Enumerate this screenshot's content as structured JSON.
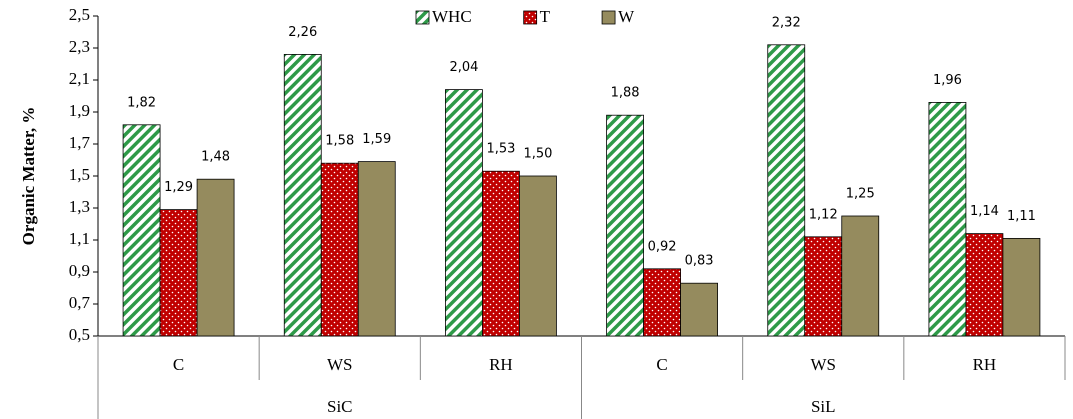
{
  "chart_data": {
    "type": "bar",
    "y_label": "Organic Matter, %",
    "category_groups": [
      {
        "name": "SiC",
        "categories": [
          "C",
          "WS",
          "RH"
        ]
      },
      {
        "name": "SiL",
        "categories": [
          "C",
          "WS",
          "RH"
        ]
      }
    ],
    "series": [
      {
        "name": "WHC",
        "color": "#2e9a48",
        "pattern": "hatch",
        "values": [
          1.82,
          2.26,
          2.04,
          1.88,
          2.32,
          1.96
        ],
        "value_labels": [
          "1,82",
          "2,26",
          "2,04",
          "1,88",
          "2,32",
          "1,96"
        ]
      },
      {
        "name": "T",
        "color": "#c00000",
        "pattern": "dots",
        "values": [
          1.29,
          1.58,
          1.53,
          0.92,
          1.12,
          1.14
        ],
        "value_labels": [
          "1,29",
          "1,58",
          "1,53",
          "0,92",
          "1,12",
          "1,14"
        ]
      },
      {
        "name": "W",
        "color": "#958b5e",
        "values": [
          1.48,
          1.59,
          1.5,
          0.83,
          1.25,
          1.11
        ],
        "value_labels": [
          "1,48",
          "1,59",
          "1,50",
          "0,83",
          "1,25",
          "1,11"
        ]
      }
    ],
    "ylim": [
      0.5,
      2.5
    ],
    "yticks": [
      {
        "value": 0.5,
        "label": "0,5"
      },
      {
        "value": 0.7,
        "label": "0,7"
      },
      {
        "value": 0.9,
        "label": "0,9"
      },
      {
        "value": 1.1,
        "label": "1,1"
      },
      {
        "value": 1.3,
        "label": "1,3"
      },
      {
        "value": 1.5,
        "label": "1,5"
      },
      {
        "value": 1.7,
        "label": "1,7"
      },
      {
        "value": 1.9,
        "label": "1,9"
      },
      {
        "value": 2.1,
        "label": "2,1"
      },
      {
        "value": 2.3,
        "label": "2,3"
      },
      {
        "value": 2.5,
        "label": "2,5"
      }
    ],
    "legend": "top"
  }
}
